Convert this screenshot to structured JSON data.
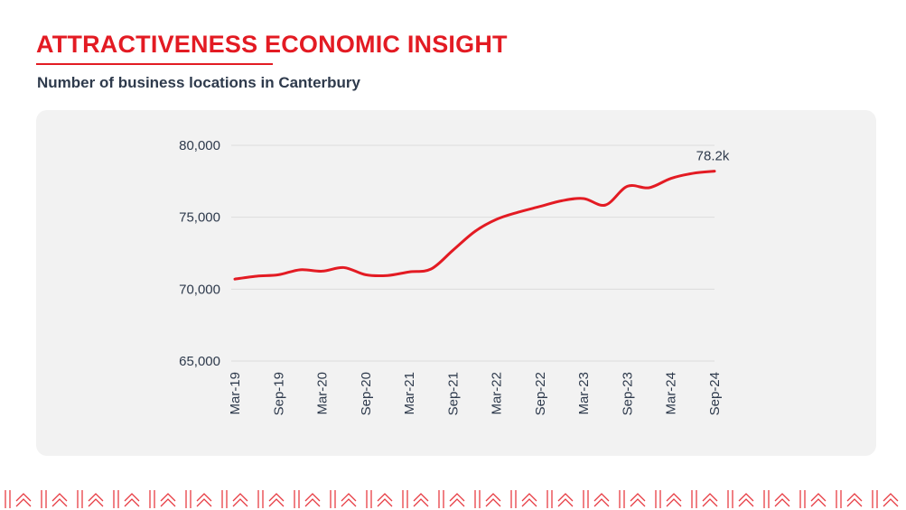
{
  "header": {
    "title": "ATTRACTIVENESS ECONOMIC INSIGHT",
    "subtitle": "Number of business locations in Canterbury"
  },
  "colors": {
    "accent": "#e31b23",
    "text": "#2e3a4c",
    "panel": "#f2f2f2",
    "gridline": "#dcdcdc"
  },
  "chart_data": {
    "type": "line",
    "title": "",
    "xlabel": "",
    "ylabel": "",
    "ylim": [
      65000,
      80000
    ],
    "y_ticks": [
      65000,
      70000,
      75000,
      80000
    ],
    "y_tick_labels": [
      "65,000",
      "70,000",
      "75,000",
      "80,000"
    ],
    "x_tick_labels": [
      "Mar-19",
      "Sep-19",
      "Mar-20",
      "Sep-20",
      "Mar-21",
      "Sep-21",
      "Mar-22",
      "Sep-22",
      "Mar-23",
      "Sep-23",
      "Mar-24",
      "Sep-24"
    ],
    "grid": true,
    "legend": "none",
    "series": [
      {
        "name": "",
        "color": "#e31b23",
        "x": [
          "Mar-19",
          "Jun-19",
          "Sep-19",
          "Dec-19",
          "Mar-20",
          "Jun-20",
          "Sep-20",
          "Dec-20",
          "Mar-21",
          "Jun-21",
          "Sep-21",
          "Dec-21",
          "Mar-22",
          "Jun-22",
          "Sep-22",
          "Dec-22",
          "Mar-23",
          "Jun-23",
          "Sep-23",
          "Dec-23",
          "Mar-24",
          "Jun-24",
          "Sep-24"
        ],
        "values": [
          70700,
          70900,
          71000,
          71350,
          71250,
          71500,
          71000,
          70950,
          71200,
          71400,
          72700,
          74000,
          74850,
          75350,
          75750,
          76150,
          76300,
          75850,
          77150,
          77050,
          77700,
          78050,
          78200
        ]
      }
    ],
    "annotations": [
      {
        "x": "Sep-24",
        "text": "78.2k"
      }
    ]
  }
}
